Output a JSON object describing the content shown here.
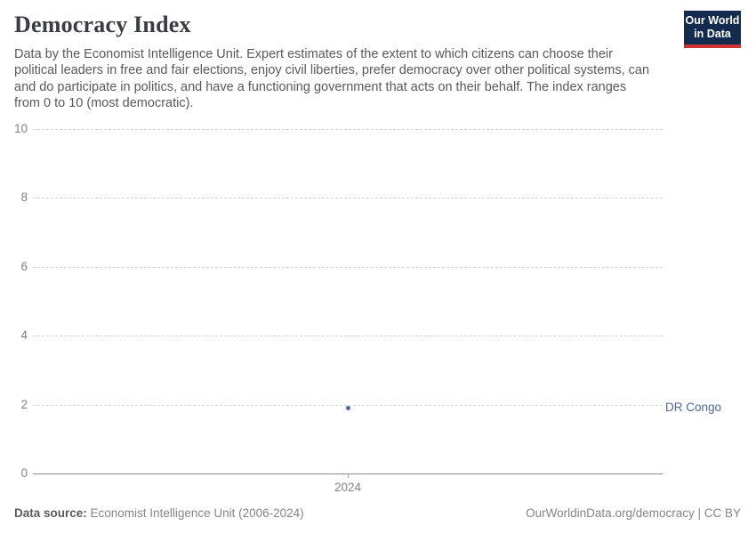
{
  "header": {
    "title": "Democracy Index",
    "logo": {
      "line1": "Our World",
      "line2": "in Data"
    }
  },
  "subtitle": {
    "lines": [
      "Data by the Economist Intelligence Unit. Expert estimates of the extent to which citizens can choose their",
      "political leaders in free and fair elections, enjoy civil liberties, prefer democracy over other political systems, can",
      "and do participate in politics, and have a functioning government that acts on their behalf. The index ranges",
      "from 0 to 10 (most democratic)."
    ]
  },
  "chart_data": {
    "type": "scatter",
    "title": "Democracy Index",
    "x": [
      2024
    ],
    "xticklabels": [
      "2024"
    ],
    "series": [
      {
        "name": "DR Congo",
        "x": [
          2024
        ],
        "values": [
          1.9
        ],
        "color": "#4c6a9c"
      }
    ],
    "ylabel": "",
    "xlabel": "",
    "ylim": [
      0,
      10
    ],
    "yticks": [
      0,
      2,
      4,
      6,
      8,
      10
    ],
    "grid": "horizontal-dashed",
    "legend": "entity-label-right"
  },
  "footer": {
    "source_label": "Data source:",
    "source_text": " Economist Intelligence Unit (2006-2024)",
    "credit": "OurWorldinData.org/democracy | CC BY"
  },
  "colors": {
    "series_blue": "#4c6a9c",
    "logo_navy": "#122b4e",
    "logo_red": "#cd3235",
    "gridline": "#d4d4d4",
    "axis": "#8c8c8c"
  }
}
